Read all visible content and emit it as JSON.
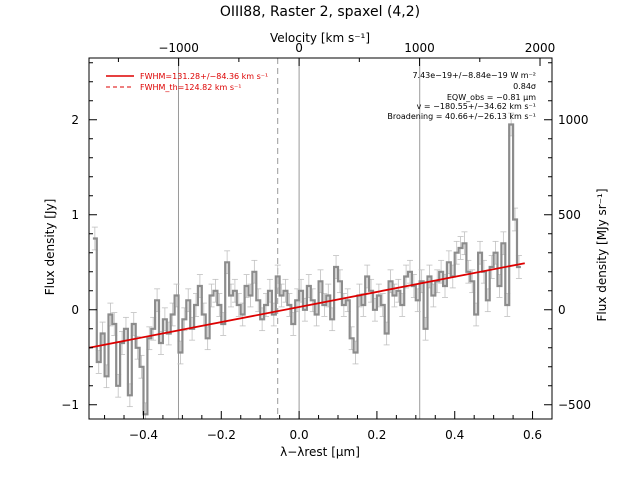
{
  "chart_data": {
    "type": "line",
    "title": "OIII88, Raster 2, spaxel (4,2)",
    "xlabel": "λ−λrest [μm]",
    "ylabel": "Flux density [Jy]",
    "top_xlabel": "Velocity [km s⁻¹]",
    "right_ylabel": "Flux density [MJy sr⁻¹]",
    "xlim": [
      -0.54,
      0.65
    ],
    "ylim": [
      -1.15,
      2.65
    ],
    "x_ticks": [
      {
        "value": -0.4,
        "label": "−0.4"
      },
      {
        "value": -0.2,
        "label": "−0.2"
      },
      {
        "value": 0.0,
        "label": "0.0"
      },
      {
        "value": 0.2,
        "label": "0.2"
      },
      {
        "value": 0.4,
        "label": "0.4"
      },
      {
        "value": 0.6,
        "label": "0.6"
      }
    ],
    "y_ticks": [
      {
        "value": -1,
        "label": "−1"
      },
      {
        "value": 0,
        "label": "0"
      },
      {
        "value": 1,
        "label": "1"
      },
      {
        "value": 2,
        "label": "2"
      }
    ],
    "top_ticks": [
      {
        "value": -0.3096,
        "label": "−1000"
      },
      {
        "value": 0.0,
        "label": "0"
      },
      {
        "value": 0.3096,
        "label": "1000"
      },
      {
        "value": 0.6192,
        "label": "2000"
      }
    ],
    "right_ticks": [
      {
        "value": -1.0,
        "label": "−500"
      },
      {
        "value": 0.0,
        "label": "0"
      },
      {
        "value": 1.0,
        "label": "500"
      },
      {
        "value": 2.0,
        "label": "1000"
      }
    ],
    "vertical_lines": [
      {
        "x": -0.31,
        "style": "solid"
      },
      {
        "x": -0.055,
        "style": "dashed"
      },
      {
        "x": 0.0,
        "style": "solid"
      },
      {
        "x": 0.31,
        "style": "solid"
      }
    ],
    "series": [
      {
        "name": "spectrum",
        "color": "#8c8c8c",
        "x": [
          -0.525,
          -0.515,
          -0.505,
          -0.495,
          -0.485,
          -0.475,
          -0.465,
          -0.455,
          -0.445,
          -0.435,
          -0.425,
          -0.415,
          -0.405,
          -0.395,
          -0.385,
          -0.375,
          -0.365,
          -0.355,
          -0.345,
          -0.335,
          -0.325,
          -0.315,
          -0.305,
          -0.295,
          -0.285,
          -0.275,
          -0.265,
          -0.255,
          -0.245,
          -0.235,
          -0.225,
          -0.215,
          -0.205,
          -0.195,
          -0.185,
          -0.175,
          -0.165,
          -0.155,
          -0.145,
          -0.135,
          -0.125,
          -0.115,
          -0.105,
          -0.095,
          -0.085,
          -0.075,
          -0.065,
          -0.055,
          -0.045,
          -0.035,
          -0.025,
          -0.015,
          -0.005,
          0.005,
          0.015,
          0.025,
          0.035,
          0.045,
          0.055,
          0.065,
          0.075,
          0.085,
          0.095,
          0.105,
          0.115,
          0.125,
          0.135,
          0.145,
          0.155,
          0.165,
          0.175,
          0.185,
          0.195,
          0.205,
          0.215,
          0.225,
          0.235,
          0.245,
          0.255,
          0.265,
          0.275,
          0.285,
          0.295,
          0.305,
          0.315,
          0.325,
          0.335,
          0.345,
          0.355,
          0.365,
          0.375,
          0.385,
          0.395,
          0.405,
          0.415,
          0.425,
          0.435,
          0.445,
          0.455,
          0.465,
          0.475,
          0.485,
          0.495,
          0.505,
          0.515,
          0.525,
          0.535,
          0.545,
          0.555,
          0.565
        ],
        "y": [
          0.75,
          -0.55,
          -0.25,
          -0.7,
          -0.05,
          -0.15,
          -0.8,
          -0.35,
          -0.2,
          -0.9,
          -0.15,
          -0.4,
          -0.6,
          -1.1,
          -0.3,
          -0.2,
          0.1,
          -0.35,
          -0.1,
          -0.25,
          -0.05,
          0.15,
          -0.45,
          -0.1,
          0.1,
          -0.2,
          0.05,
          0.25,
          -0.05,
          -0.3,
          0.15,
          0.2,
          0.05,
          -0.15,
          0.5,
          0.15,
          0.2,
          0.05,
          -0.05,
          0.25,
          0.15,
          0.4,
          0.1,
          -0.1,
          0.05,
          0.2,
          -0.05,
          0.35,
          0.15,
          0.2,
          0.05,
          -0.15,
          0.1,
          0.2,
          0.0,
          0.25,
          0.1,
          -0.05,
          0.3,
          0.05,
          0.15,
          -0.1,
          0.45,
          0.3,
          0.05,
          0.1,
          -0.3,
          -0.45,
          0.15,
          0.05,
          0.35,
          0.2,
          0.0,
          0.15,
          0.05,
          -0.25,
          0.3,
          0.15,
          0.2,
          0.05,
          0.35,
          0.4,
          0.25,
          0.1,
          0.3,
          -0.2,
          0.35,
          0.15,
          0.3,
          0.4,
          0.25,
          0.5,
          0.35,
          0.6,
          0.65,
          0.7,
          0.4,
          0.3,
          -0.05,
          0.6,
          0.4,
          0.1,
          0.45,
          0.6,
          0.25,
          0.7,
          0.05,
          1.95,
          0.95,
          0.45
        ],
        "errors": [
          0.12,
          0.12,
          0.12,
          0.12,
          0.12,
          0.12,
          0.12,
          0.12,
          0.12,
          0.12,
          0.12,
          0.12,
          0.12,
          0.12,
          0.12,
          0.12,
          0.12,
          0.12,
          0.12,
          0.12,
          0.12,
          0.12,
          0.12,
          0.12,
          0.12,
          0.12,
          0.12,
          0.12,
          0.12,
          0.12,
          0.12,
          0.12,
          0.12,
          0.12,
          0.12,
          0.12,
          0.12,
          0.12,
          0.12,
          0.12,
          0.12,
          0.12,
          0.12,
          0.12,
          0.12,
          0.12,
          0.12,
          0.12,
          0.12,
          0.12,
          0.12,
          0.12,
          0.12,
          0.12,
          0.12,
          0.12,
          0.12,
          0.12,
          0.12,
          0.12,
          0.12,
          0.12,
          0.12,
          0.12,
          0.12,
          0.12,
          0.12,
          0.12,
          0.12,
          0.12,
          0.12,
          0.12,
          0.12,
          0.12,
          0.12,
          0.12,
          0.12,
          0.12,
          0.12,
          0.12,
          0.12,
          0.12,
          0.12,
          0.12,
          0.12,
          0.12,
          0.12,
          0.12,
          0.12,
          0.12,
          0.12,
          0.12,
          0.12,
          0.12,
          0.12,
          0.12,
          0.12,
          0.12,
          0.12,
          0.12,
          0.12,
          0.12,
          0.12,
          0.12,
          0.12,
          0.12,
          0.12,
          0.12,
          0.12,
          0.12
        ]
      },
      {
        "name": "FWHM=131.28+/−84.36 km s⁻¹",
        "color": "#dd0000",
        "style": "solid",
        "x": [
          -0.54,
          0.58
        ],
        "y": [
          -0.4,
          0.49
        ]
      }
    ],
    "legend": {
      "placement": "top-left",
      "entries": [
        {
          "label": "FWHM=131.28+/−84.36 km s⁻¹",
          "style": "solid",
          "color": "#dd0000"
        },
        {
          "label": "FWHM_th=124.82 km s⁻¹",
          "style": "dashed",
          "color": "#dd0000"
        }
      ]
    },
    "annotations": [
      "7.43e−19+/−8.84e−19 W m⁻²",
      "0.84σ",
      "EQW_obs = −0.81 μm",
      "v = −180.55+/−34.62 km s⁻¹",
      "Broadening = 40.66+/−26.13 km s⁻¹"
    ],
    "grid": false
  }
}
